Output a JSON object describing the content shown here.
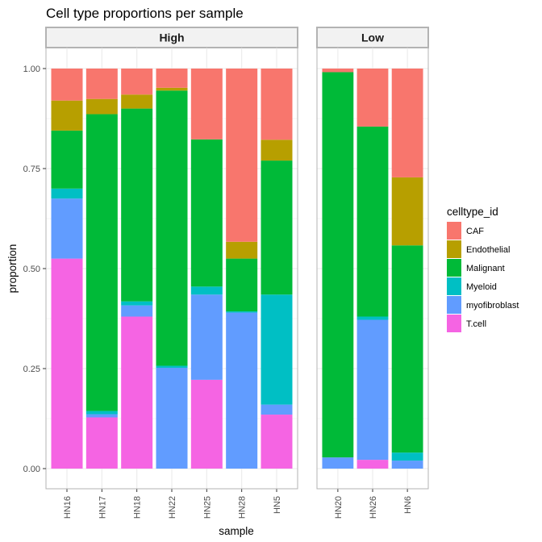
{
  "chart_data": {
    "type": "bar",
    "stacked": true,
    "title": "Cell type proportions per sample",
    "xlabel": "sample",
    "ylabel": "proportion",
    "ylim": [
      0,
      1
    ],
    "yticks": [
      "0.00",
      "0.25",
      "0.50",
      "0.75",
      "1.00"
    ],
    "grid": true,
    "legend": {
      "title": "celltype_id",
      "position": "right"
    },
    "stack_order": [
      "T.cell",
      "myofibroblast",
      "Myeloid",
      "Malignant",
      "Endothelial",
      "CAF"
    ],
    "series": [
      {
        "name": "CAF",
        "color": "#F8766D"
      },
      {
        "name": "Endothelial",
        "color": "#B79F00"
      },
      {
        "name": "Malignant",
        "color": "#00BA38"
      },
      {
        "name": "Myeloid",
        "color": "#00BFC4"
      },
      {
        "name": "myofibroblast",
        "color": "#619CFF"
      },
      {
        "name": "T.cell",
        "color": "#F564E3"
      }
    ],
    "facets": [
      {
        "label": "High",
        "samples": [
          {
            "name": "HN16",
            "values": {
              "T.cell": 0.525,
              "myofibroblast": 0.15,
              "Myeloid": 0.025,
              "Malignant": 0.145,
              "Endothelial": 0.075,
              "CAF": 0.08
            }
          },
          {
            "name": "HN17",
            "values": {
              "T.cell": 0.128,
              "myofibroblast": 0.008,
              "Myeloid": 0.008,
              "Malignant": 0.742,
              "Endothelial": 0.038,
              "CAF": 0.076
            }
          },
          {
            "name": "HN18",
            "values": {
              "T.cell": 0.38,
              "myofibroblast": 0.028,
              "Myeloid": 0.01,
              "Malignant": 0.482,
              "Endothelial": 0.035,
              "CAF": 0.065
            }
          },
          {
            "name": "HN22",
            "values": {
              "T.cell": 0.0,
              "myofibroblast": 0.252,
              "Myeloid": 0.005,
              "Malignant": 0.688,
              "Endothelial": 0.007,
              "CAF": 0.048
            }
          },
          {
            "name": "HN25",
            "values": {
              "T.cell": 0.222,
              "myofibroblast": 0.213,
              "Myeloid": 0.02,
              "Malignant": 0.368,
              "Endothelial": 0.0,
              "CAF": 0.177
            }
          },
          {
            "name": "HN28",
            "values": {
              "T.cell": 0.0,
              "myofibroblast": 0.39,
              "Myeloid": 0.003,
              "Malignant": 0.132,
              "Endothelial": 0.042,
              "CAF": 0.433
            }
          },
          {
            "name": "HN5",
            "values": {
              "T.cell": 0.135,
              "myofibroblast": 0.025,
              "Myeloid": 0.275,
              "Malignant": 0.335,
              "Endothelial": 0.052,
              "CAF": 0.178
            }
          }
        ]
      },
      {
        "label": "Low",
        "samples": [
          {
            "name": "HN20",
            "values": {
              "T.cell": 0.0,
              "myofibroblast": 0.028,
              "Myeloid": 0.0,
              "Malignant": 0.963,
              "Endothelial": 0.0,
              "CAF": 0.009
            }
          },
          {
            "name": "HN26",
            "values": {
              "T.cell": 0.022,
              "myofibroblast": 0.35,
              "Myeloid": 0.008,
              "Malignant": 0.475,
              "Endothelial": 0.0,
              "CAF": 0.145
            }
          },
          {
            "name": "HN6",
            "values": {
              "T.cell": 0.0,
              "myofibroblast": 0.02,
              "Myeloid": 0.02,
              "Malignant": 0.518,
              "Endothelial": 0.17,
              "CAF": 0.272
            }
          }
        ]
      }
    ]
  }
}
